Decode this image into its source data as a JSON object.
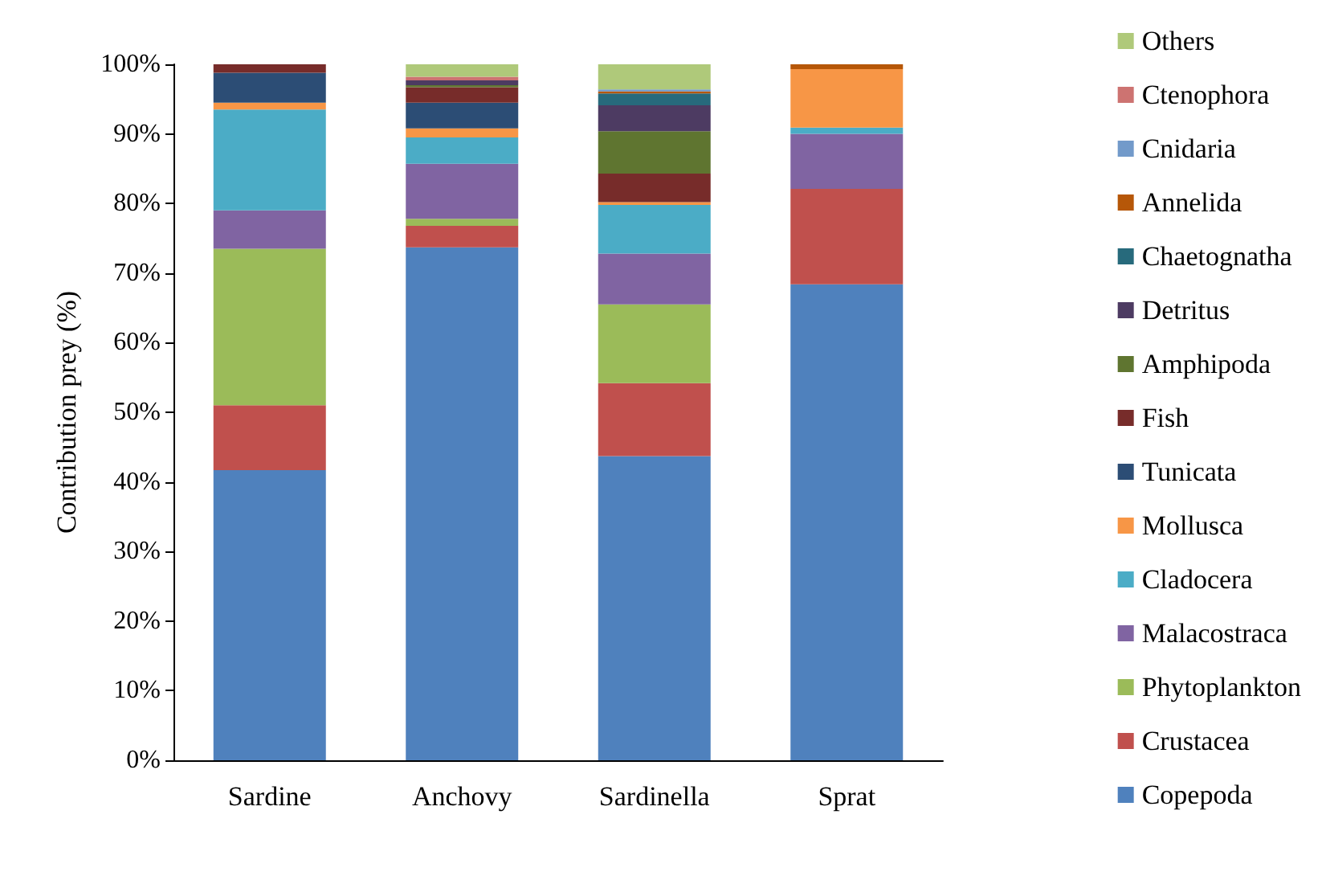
{
  "chart_data": {
    "type": "bar",
    "stacked": true,
    "ylabel": "Contribution prey (%)",
    "categories": [
      "Sardine",
      "Anchovy",
      "Sardinella",
      "Sprat"
    ],
    "ylim": [
      0,
      100
    ],
    "yticks": [
      {
        "value": 0,
        "label": "0%"
      },
      {
        "value": 10,
        "label": "10%"
      },
      {
        "value": 20,
        "label": "20%"
      },
      {
        "value": 30,
        "label": "30%"
      },
      {
        "value": 40,
        "label": "40%"
      },
      {
        "value": 50,
        "label": "50%"
      },
      {
        "value": 60,
        "label": "60%"
      },
      {
        "value": 70,
        "label": "70%"
      },
      {
        "value": 80,
        "label": "80%"
      },
      {
        "value": 90,
        "label": "90%"
      },
      {
        "value": 100,
        "label": "100%"
      }
    ],
    "grid": false,
    "legend": "right",
    "series": [
      {
        "name": "Copepoda",
        "color": "#4f81bd",
        "values": [
          41.7,
          73.7,
          43.7,
          68.4
        ]
      },
      {
        "name": "Crustacea",
        "color": "#c0504d",
        "values": [
          9.3,
          3.1,
          10.5,
          13.7
        ]
      },
      {
        "name": "Phytoplankton",
        "color": "#9bbb59",
        "values": [
          22.5,
          1.0,
          11.3,
          0
        ]
      },
      {
        "name": "Malacostraca",
        "color": "#8064a2",
        "values": [
          5.5,
          7.9,
          7.3,
          7.9
        ]
      },
      {
        "name": "Cladocera",
        "color": "#4bacc6",
        "values": [
          14.5,
          3.8,
          7.0,
          0.9
        ]
      },
      {
        "name": "Mollusca",
        "color": "#f79646",
        "values": [
          1.0,
          1.3,
          0.4,
          8.4
        ]
      },
      {
        "name": "Tunicata",
        "color": "#2c4d75",
        "values": [
          4.3,
          3.7,
          0,
          0
        ]
      },
      {
        "name": "Fish",
        "color": "#772c2a",
        "values": [
          1.2,
          2.2,
          4.1,
          0
        ]
      },
      {
        "name": "Amphipoda",
        "color": "#5f7530",
        "values": [
          0,
          0.3,
          6.1,
          0
        ]
      },
      {
        "name": "Detritus",
        "color": "#4d3b62",
        "values": [
          0,
          0.7,
          3.7,
          0
        ]
      },
      {
        "name": "Chaetognatha",
        "color": "#276a7c",
        "values": [
          0,
          0,
          1.7,
          0
        ]
      },
      {
        "name": "Annelida",
        "color": "#b65708",
        "values": [
          0,
          0,
          0.3,
          0.7
        ]
      },
      {
        "name": "Cnidaria",
        "color": "#729aca",
        "values": [
          0,
          0,
          0.3,
          0
        ]
      },
      {
        "name": "Ctenophora",
        "color": "#cd7371",
        "values": [
          0,
          0.5,
          0,
          0
        ]
      },
      {
        "name": "Others",
        "color": "#afc97a",
        "values": [
          0,
          1.8,
          3.6,
          0
        ]
      }
    ]
  }
}
